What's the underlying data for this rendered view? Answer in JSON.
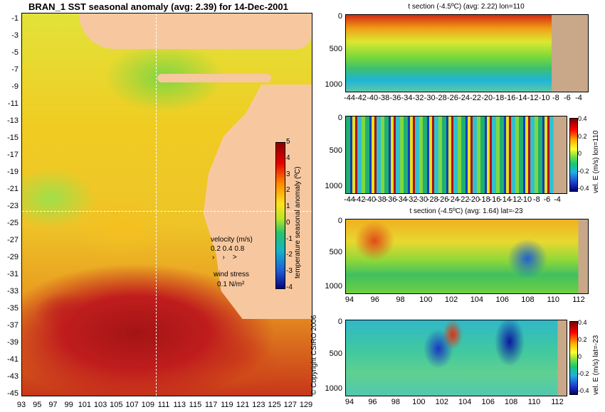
{
  "map": {
    "title": "BRAN_1  SST seasonal anomaly  (avg: 2.39) for 14-Dec-2001",
    "lat_ticks": [
      "-1",
      "-3",
      "-5",
      "-7",
      "-9",
      "-11",
      "-13",
      "-15",
      "-17",
      "-19",
      "-21",
      "-23",
      "-25",
      "-27",
      "-29",
      "-31",
      "-33",
      "-35",
      "-37",
      "-39",
      "-41",
      "-43",
      "-45"
    ],
    "lon_ticks": [
      "93",
      "95",
      "97",
      "99",
      "101",
      "103",
      "105",
      "107",
      "109",
      "111",
      "113",
      "115",
      "117",
      "119",
      "121",
      "123",
      "125",
      "127",
      "129"
    ],
    "colorbar": {
      "label": "temperature seasonal anomaly (ºC)",
      "ticks": [
        "5",
        "4",
        "3",
        "2",
        "1",
        "0",
        "-1",
        "-2",
        "-3",
        "-4"
      ],
      "ticks_range": [
        5,
        -4
      ]
    },
    "legend": {
      "velocity_label": "velocity (m/s)",
      "velocity_values": "0.2 0.4 0.8",
      "wind_label": "wind stress",
      "wind_value": "0.1 N/m²"
    },
    "crosshair": {
      "lon": 110,
      "lat": -23
    },
    "colors": {
      "ocean_warm": "#f0cc22",
      "ocean_hot": "#c01d1d",
      "land": "#f7c8a0",
      "section_land": "#c8a888"
    }
  },
  "panels": {
    "p1": {
      "title": "t section (-4.5ºC)  (avg: 2.22) lon=110",
      "y_ticks": [
        "0",
        "500",
        "1000"
      ],
      "x_ticks": [
        "-44",
        "-42",
        "-40",
        "-38",
        "-36",
        "-34",
        "-32",
        "-30",
        "-28",
        "-26",
        "-24",
        "-22",
        "-20",
        "-18",
        "-16",
        "-14",
        "-12",
        "-10",
        "-8",
        "-6",
        "-4"
      ]
    },
    "p2": {
      "y_ticks": [
        "0",
        "500",
        "1000"
      ],
      "x_ticks": [
        "-44",
        "-42",
        "-40",
        "-38",
        "-36",
        "-34",
        "-32",
        "-30",
        "-28",
        "-26",
        "-24",
        "-22",
        "-20",
        "-18",
        "-16",
        "-14",
        "-12",
        "-10",
        "-8",
        "-6",
        "-4"
      ],
      "cbar_label": "vel. E (m/s) lon=110",
      "cbar_ticks": [
        "0.4",
        "0.2",
        "0",
        "-0.2",
        "-0.4"
      ]
    },
    "p3": {
      "title": "t section (-4.5ºC)  (avg: 1.64) lat=-23",
      "y_ticks": [
        "0",
        "500",
        "1000"
      ],
      "x_ticks": [
        "94",
        "96",
        "98",
        "100",
        "102",
        "104",
        "106",
        "108",
        "110",
        "112"
      ]
    },
    "p4": {
      "y_ticks": [
        "0",
        "500",
        "1000"
      ],
      "x_ticks": [
        "94",
        "96",
        "98",
        "100",
        "102",
        "104",
        "106",
        "108",
        "110",
        "112"
      ],
      "cbar_label": "vel. E (m/s) lat=-23",
      "cbar_ticks": [
        "0.4",
        "0.2",
        "0",
        "-0.2",
        "-0.4"
      ]
    }
  },
  "copyright": "© Copyright CSIRO 2006"
}
